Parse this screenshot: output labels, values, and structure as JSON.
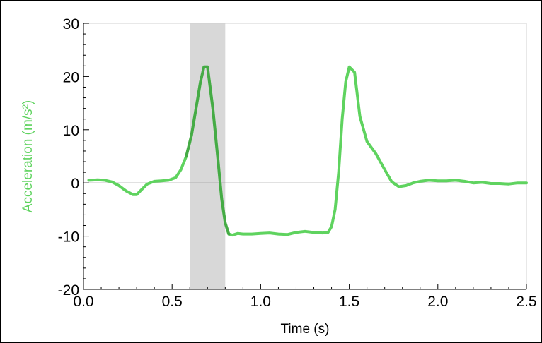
{
  "chart_data": {
    "type": "line",
    "title": "",
    "xlabel": "Time (s)",
    "ylabel": "Acceleration (m/s²)",
    "xlim": [
      0.0,
      2.5
    ],
    "ylim": [
      -20,
      30
    ],
    "x_ticks": [
      "0.0",
      "0.5",
      "1.0",
      "1.5",
      "2.0",
      "2.5"
    ],
    "y_ticks": [
      "30",
      "20",
      "10",
      "0",
      "-10",
      "-20"
    ],
    "grid": false,
    "legend": "none",
    "highlight_region": {
      "x_start": 0.6,
      "x_end": 0.8,
      "color": "#d8d8d8"
    },
    "series": [
      {
        "color": "#5fd35f",
        "dark_color": "#2f8a2f",
        "x": [
          0.03,
          0.08,
          0.12,
          0.16,
          0.2,
          0.24,
          0.28,
          0.3,
          0.33,
          0.36,
          0.4,
          0.44,
          0.48,
          0.52,
          0.55,
          0.58,
          0.61,
          0.64,
          0.66,
          0.68,
          0.7,
          0.73,
          0.76,
          0.78,
          0.8,
          0.82,
          0.84,
          0.87,
          0.9,
          0.95,
          1.0,
          1.05,
          1.1,
          1.15,
          1.2,
          1.25,
          1.3,
          1.35,
          1.38,
          1.4,
          1.42,
          1.44,
          1.46,
          1.48,
          1.5,
          1.53,
          1.56,
          1.6,
          1.65,
          1.7,
          1.74,
          1.78,
          1.82,
          1.86,
          1.9,
          1.95,
          2.0,
          2.05,
          2.1,
          2.15,
          2.2,
          2.25,
          2.3,
          2.35,
          2.4,
          2.45,
          2.5
        ],
        "y": [
          0.5,
          0.6,
          0.5,
          0.2,
          -0.5,
          -1.5,
          -2.2,
          -2.2,
          -1.2,
          -0.2,
          0.3,
          0.4,
          0.5,
          1.0,
          2.5,
          5.0,
          9.0,
          15.0,
          19.0,
          21.8,
          21.8,
          14.0,
          4.0,
          -3.0,
          -7.5,
          -9.6,
          -9.8,
          -9.5,
          -9.6,
          -9.6,
          -9.5,
          -9.4,
          -9.6,
          -9.7,
          -9.3,
          -9.1,
          -9.3,
          -9.4,
          -9.3,
          -8.2,
          -5.0,
          2.0,
          12.0,
          19.0,
          21.8,
          20.8,
          12.5,
          7.8,
          5.5,
          2.5,
          0.2,
          -0.7,
          -0.5,
          0.0,
          0.3,
          0.5,
          0.4,
          0.4,
          0.5,
          0.3,
          0.0,
          0.1,
          -0.1,
          -0.1,
          -0.2,
          0.0,
          0.0
        ]
      }
    ]
  }
}
